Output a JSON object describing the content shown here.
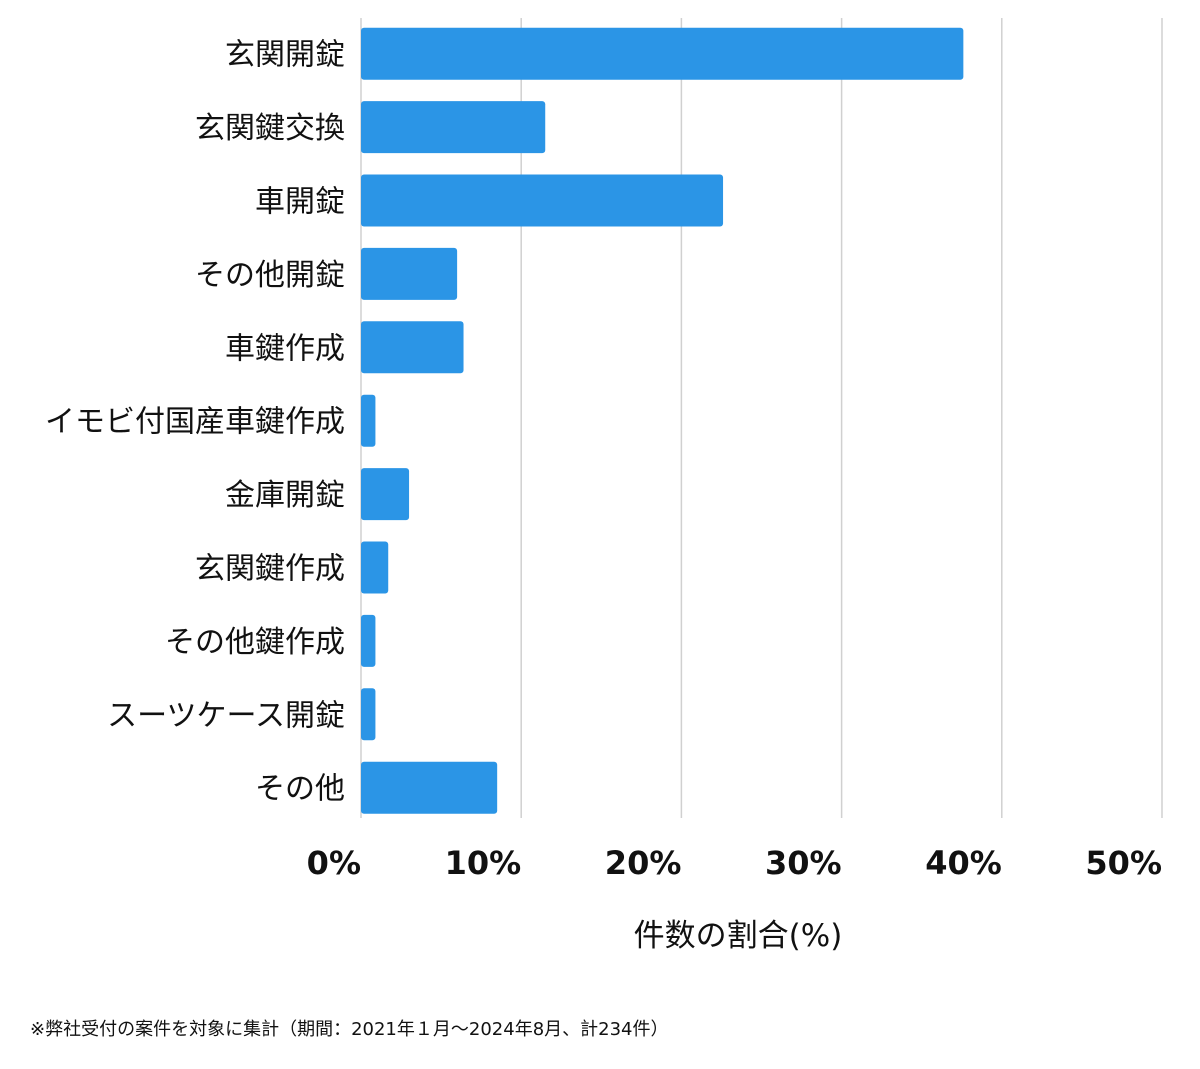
{
  "chart_data": {
    "type": "bar",
    "orientation": "horizontal",
    "categories": [
      "玄関開錠",
      "玄関鍵交換",
      "車開錠",
      "その他開錠",
      "車鍵作成",
      "イモビ付国産車鍵作成",
      "金庫開錠",
      "玄関鍵作成",
      "その他鍵作成",
      "スーツケース開錠",
      "その他"
    ],
    "values": [
      37.6,
      11.5,
      22.6,
      6.0,
      6.4,
      0.9,
      3.0,
      1.7,
      0.9,
      0.9,
      8.5
    ],
    "xlim": [
      0,
      50
    ],
    "xticks": [
      0,
      10,
      20,
      30,
      40,
      50
    ],
    "xtick_labels": [
      "0%",
      "10%",
      "20%",
      "30%",
      "40%",
      "50%"
    ],
    "xlabel": "件数の割合(%)",
    "ylabel": "",
    "title": "",
    "grid": true,
    "colors": {
      "bar": "#2b95e6",
      "grid": "#d0d0d0"
    }
  },
  "footnote": "※弊社受付の案件を対象に集計（期間：2021年１月〜2024年8月、計234件）"
}
